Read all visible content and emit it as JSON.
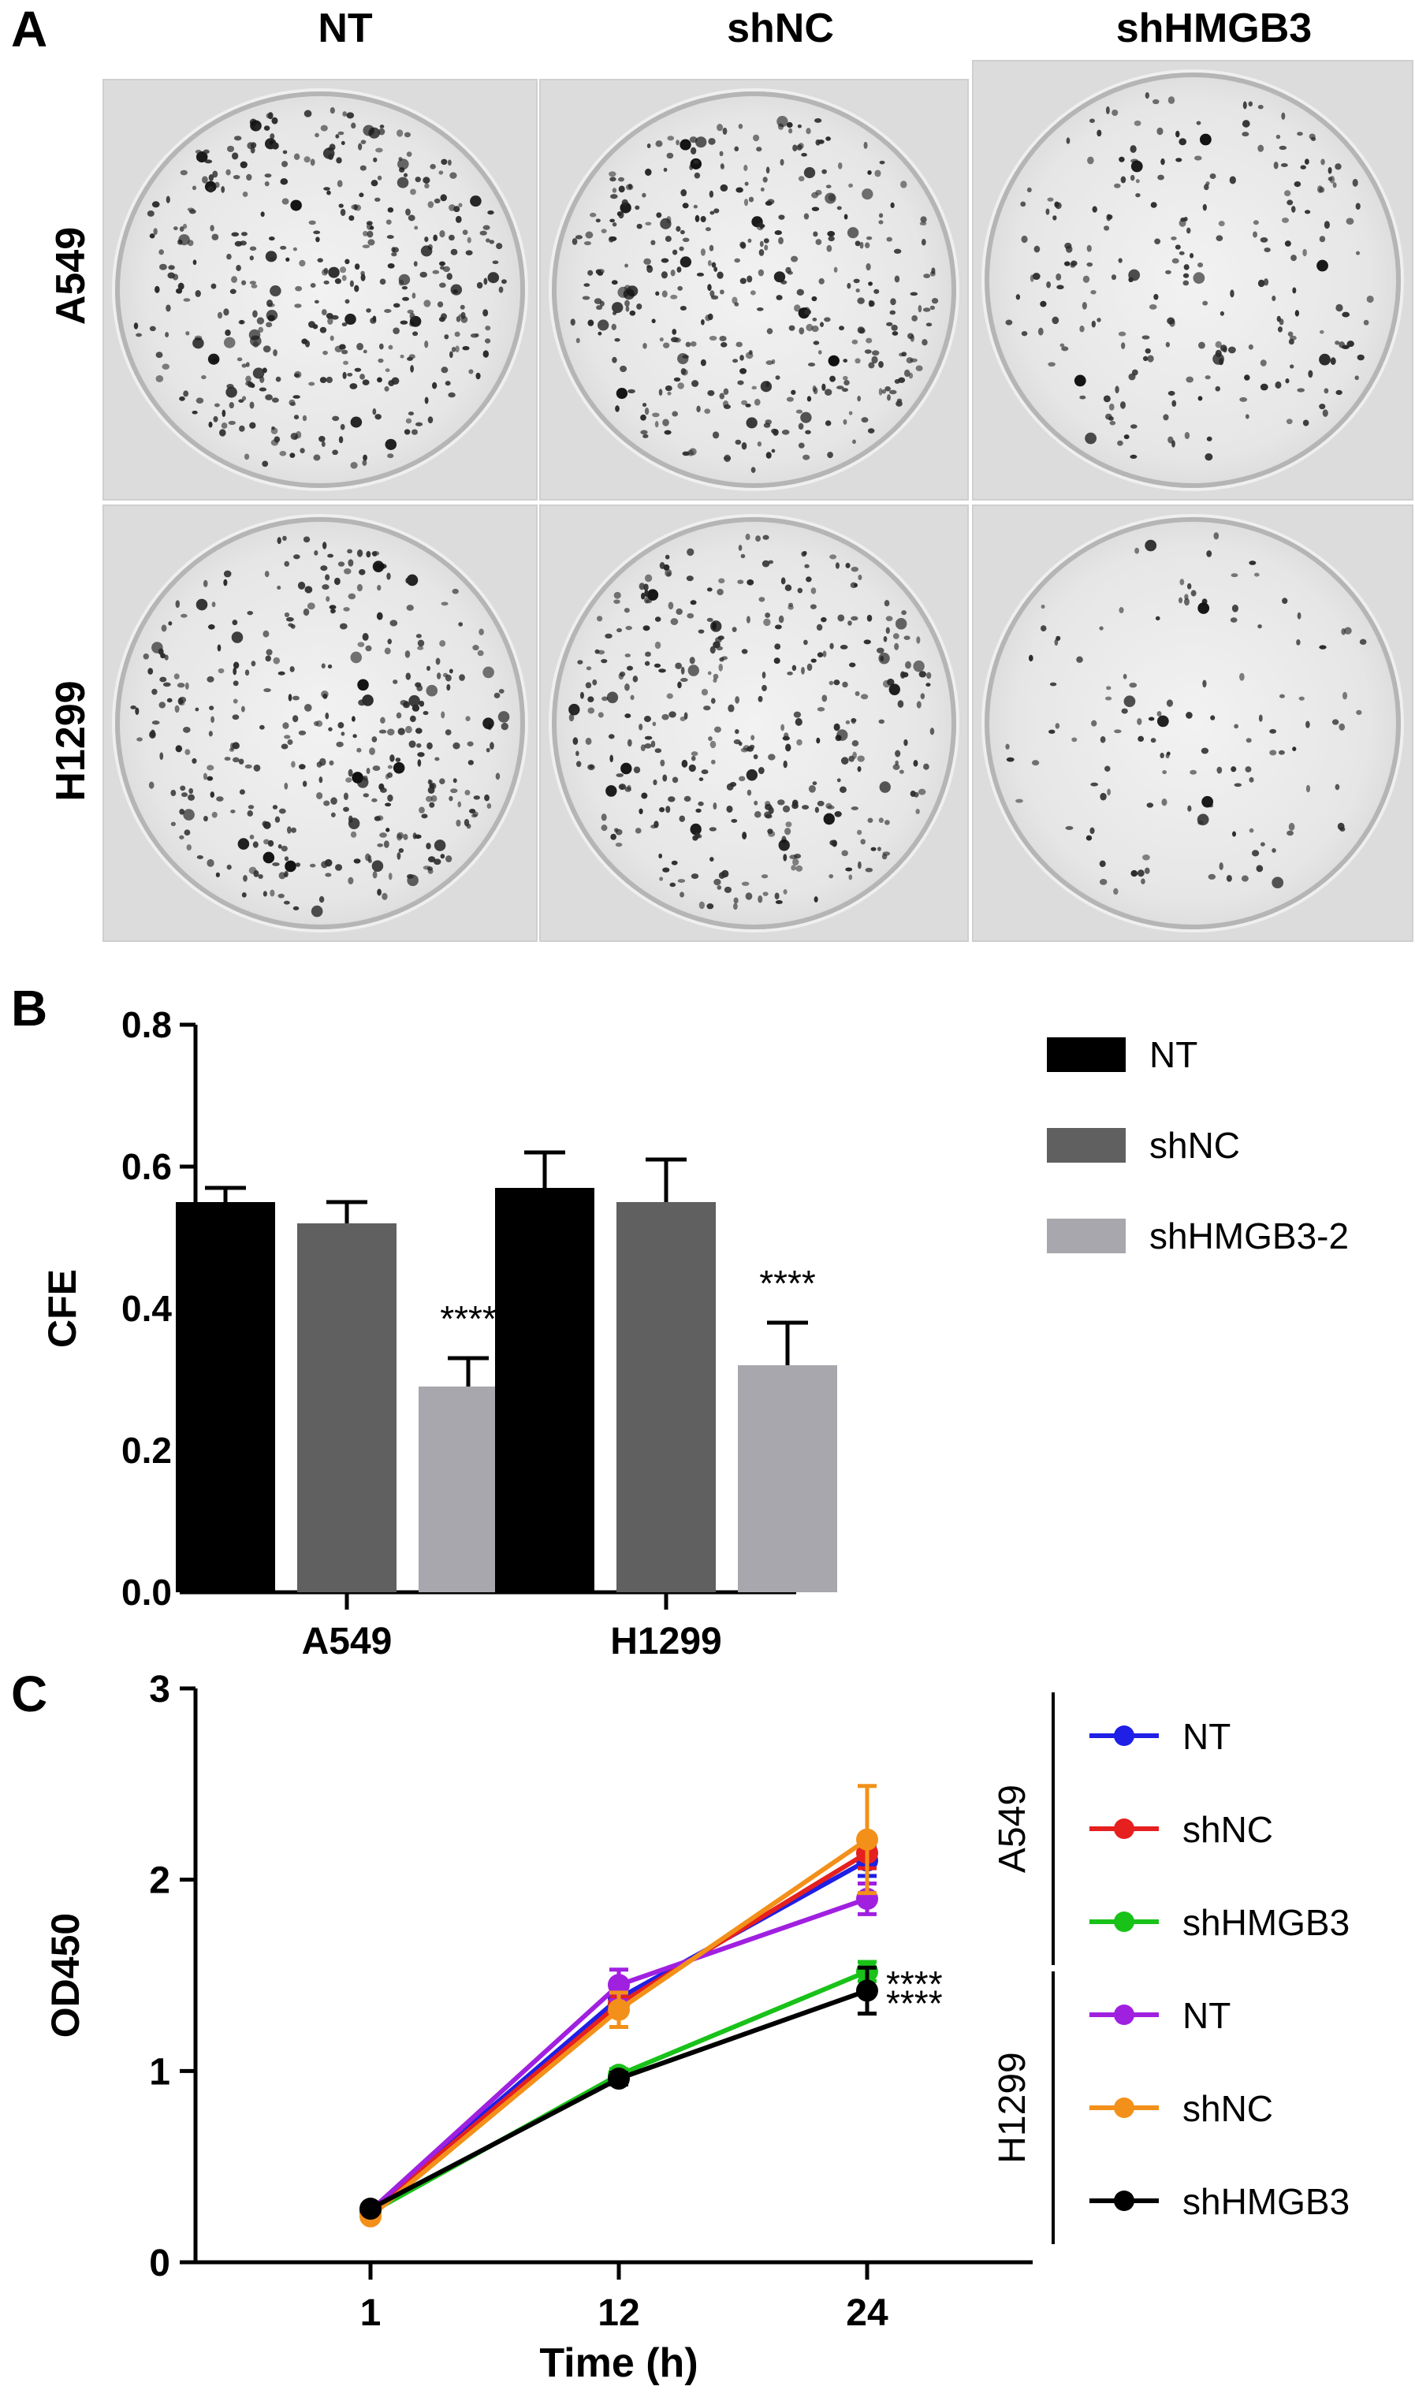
{
  "panel_a": {
    "letter": "A",
    "columns": [
      "NT",
      "shNC",
      "shHMGB3"
    ],
    "rows": [
      "A549",
      "H1299"
    ],
    "colony_density": [
      [
        1.0,
        0.95,
        0.55
      ],
      [
        0.9,
        0.9,
        0.3
      ]
    ]
  },
  "chart_data": [
    {
      "panel": "B",
      "type": "bar",
      "categories": [
        "A549",
        "H1299"
      ],
      "ylabel": "CFE",
      "xlabel": "",
      "ylim": [
        0.0,
        0.8
      ],
      "yticks": [
        "0.0",
        "0.2",
        "0.4",
        "0.6",
        "0.8"
      ],
      "legend_position": "right",
      "series": [
        {
          "name": "NT",
          "color": "#000000",
          "values": [
            0.55,
            0.57
          ],
          "errors": [
            0.02,
            0.05
          ]
        },
        {
          "name": "shNC",
          "color": "#606060",
          "values": [
            0.52,
            0.55
          ],
          "errors": [
            0.03,
            0.06
          ]
        },
        {
          "name": "shHMGB3-2",
          "color": "#a7a7ad",
          "values": [
            0.29,
            0.32
          ],
          "errors": [
            0.04,
            0.06
          ]
        }
      ],
      "annotations": [
        {
          "category": "A549",
          "series": "shHMGB3-2",
          "text": "****"
        },
        {
          "category": "H1299",
          "series": "shHMGB3-2",
          "text": "****"
        }
      ]
    },
    {
      "panel": "C",
      "type": "line",
      "x": [
        1,
        12,
        24
      ],
      "xticks": [
        "1",
        "12",
        "24"
      ],
      "xlabel": "Time (h)",
      "ylabel": "OD450",
      "ylim": [
        0,
        3
      ],
      "yticks": [
        "0",
        "1",
        "2",
        "3"
      ],
      "legend_position": "right",
      "legend_groups": [
        {
          "label": "A549",
          "series": [
            "NT",
            "shNC",
            "shHMGB3"
          ]
        },
        {
          "label": "H1299",
          "series": [
            "NT",
            "shNC",
            "shHMGB3"
          ]
        }
      ],
      "series": [
        {
          "name": "NT",
          "group": "A549",
          "color": "#1f1fe6",
          "values": [
            0.27,
            1.38,
            2.1
          ],
          "errors": [
            0.02,
            0.05,
            0.08
          ]
        },
        {
          "name": "shNC",
          "group": "A549",
          "color": "#e61f1f",
          "values": [
            0.26,
            1.35,
            2.14
          ],
          "errors": [
            0.02,
            0.05,
            0.08
          ]
        },
        {
          "name": "shHMGB3",
          "group": "A549",
          "color": "#19c219",
          "values": [
            0.26,
            0.98,
            1.52
          ],
          "errors": [
            0.02,
            0.03,
            0.05
          ]
        },
        {
          "name": "NT",
          "group": "H1299",
          "color": "#a020e0",
          "values": [
            0.27,
            1.45,
            1.9
          ],
          "errors": [
            0.02,
            0.08,
            0.08
          ]
        },
        {
          "name": "shNC",
          "group": "H1299",
          "color": "#f39019",
          "values": [
            0.24,
            1.32,
            2.21
          ],
          "errors": [
            0.02,
            0.09,
            0.28
          ]
        },
        {
          "name": "shHMGB3",
          "group": "H1299",
          "color": "#000000",
          "values": [
            0.28,
            0.96,
            1.42
          ],
          "errors": [
            0.02,
            0.03,
            0.12
          ]
        }
      ],
      "annotations": [
        {
          "text": "****",
          "series": "A549 shHMGB3"
        },
        {
          "text": "****",
          "series": "H1299 shHMGB3"
        }
      ]
    }
  ]
}
